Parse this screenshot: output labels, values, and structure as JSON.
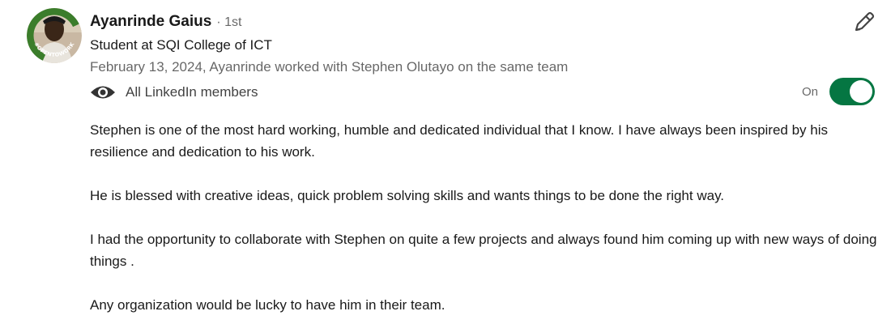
{
  "recommender": {
    "name": "Ayanrinde Gaius",
    "degree": "· 1st",
    "headline": "Student at SQI College of ICT",
    "meta": "February 13, 2024, Ayanrinde worked with Stephen Olutayo on the same team",
    "avatar_frame_text": "#OPENTOWORK"
  },
  "visibility": {
    "icon": "eye-icon",
    "label": "All LinkedIn members",
    "toggle_state": "On",
    "toggle_on": true
  },
  "actions": {
    "edit_icon": "pencil-icon"
  },
  "recommendation": {
    "paragraphs": [
      "Stephen is one of the most hard working, humble and dedicated individual that I know. I have always been inspired by his resilience and dedication to his work.",
      "He is blessed with creative ideas, quick problem solving skills and wants things to be done the right way.",
      "I had the opportunity to collaborate with Stephen on quite a few projects and always found him coming up with new ways of doing things .",
      "Any organization would be lucky to have him in their team."
    ]
  },
  "colors": {
    "toggle_on": "#057642",
    "open_to_work_ring": "#3b7d2b"
  }
}
